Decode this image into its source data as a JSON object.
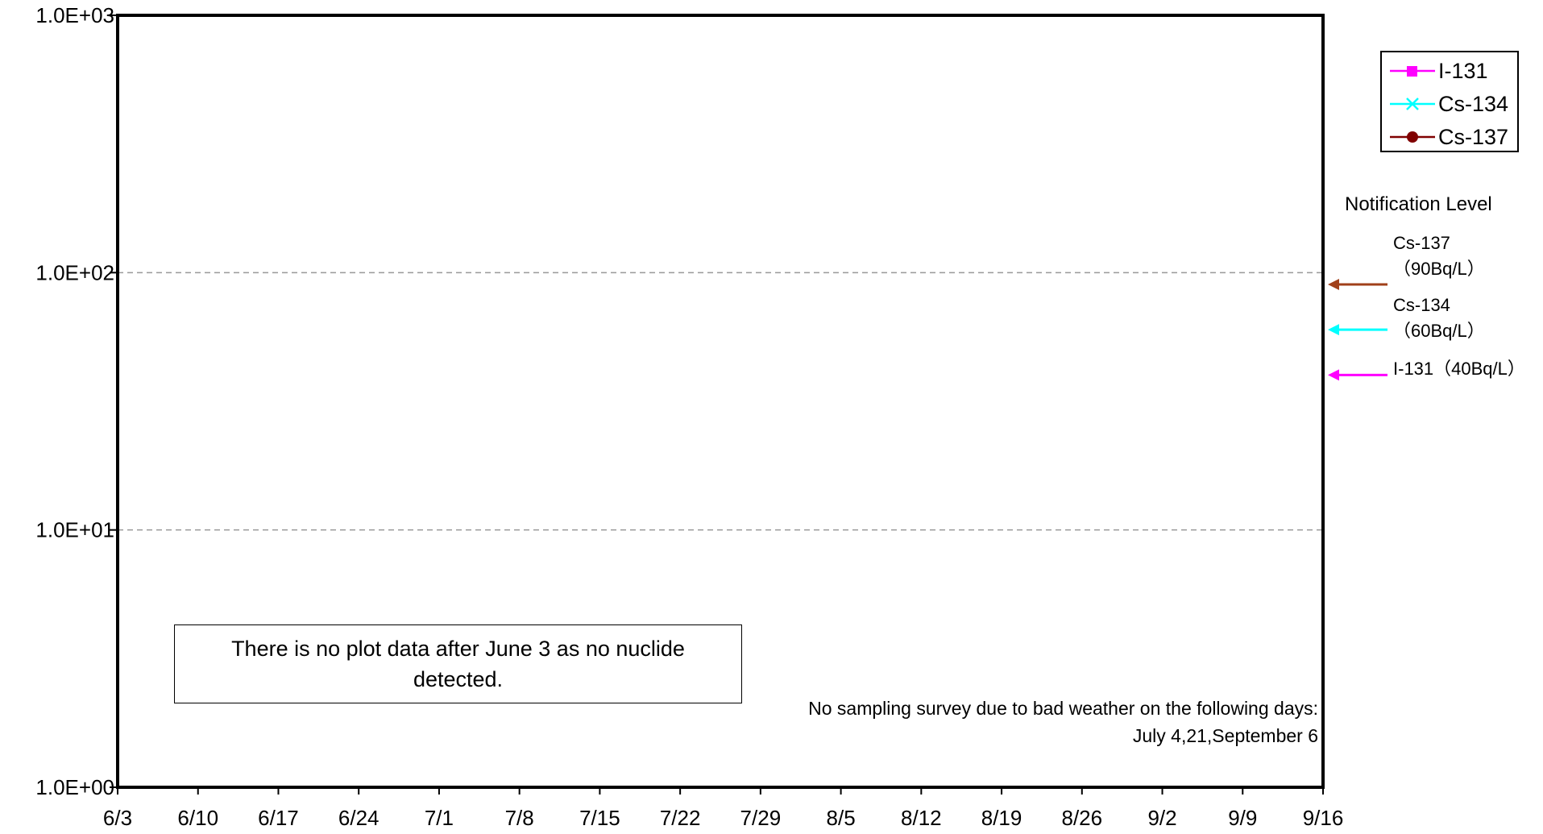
{
  "chart_data": {
    "type": "line",
    "title": "",
    "xlabel": "",
    "ylabel": "",
    "y_scale": "log",
    "ylim": [
      1,
      1000
    ],
    "y_ticks": [
      "1.0E+00",
      "1.0E+01",
      "1.0E+02",
      "1.0E+03"
    ],
    "y_tick_values": [
      1,
      10,
      100,
      1000
    ],
    "grid": "horizontal dashed at 10 and 100",
    "x_ticks": [
      "6/3",
      "6/10",
      "6/17",
      "6/24",
      "7/1",
      "7/8",
      "7/15",
      "7/22",
      "7/29",
      "8/5",
      "8/12",
      "8/19",
      "8/26",
      "9/2",
      "9/9",
      "9/16"
    ],
    "series": [
      {
        "name": "I-131",
        "color": "#ff00ff",
        "marker": "square",
        "values": []
      },
      {
        "name": "Cs-134",
        "color": "#00ffff",
        "marker": "x",
        "values": []
      },
      {
        "name": "Cs-137",
        "color": "#800000",
        "marker": "circle",
        "values": []
      }
    ],
    "legend_position": "top-right, outside plot",
    "notification_levels": {
      "title": "Notification Level",
      "items": [
        {
          "nuclide": "Cs-137",
          "line1": "Cs-137",
          "line2": "（90Bq/L）",
          "value": 90,
          "color": "#a0401a"
        },
        {
          "nuclide": "Cs-134",
          "line1": "Cs-134",
          "line2": "（60Bq/L）",
          "value": 60,
          "color": "#00ffff"
        },
        {
          "nuclide": "I-131",
          "line1": "I-131（40Bq/L）",
          "line2": "",
          "value": 40,
          "color": "#ff00ff"
        }
      ]
    },
    "annotations": {
      "no_data_note": "There is no plot data after June 3 as no nuclide detected.",
      "weather_note_line1": "No sampling survey due to bad weather on the following days:",
      "weather_note_line2": "July 4,21,September 6"
    }
  }
}
